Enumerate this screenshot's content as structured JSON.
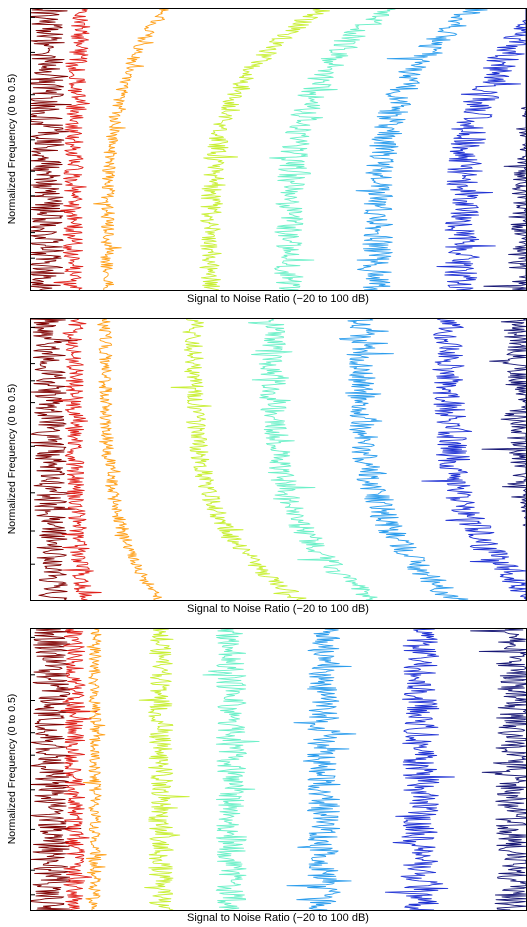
{
  "figure": {
    "panel_count": 3,
    "background": "#ffffff"
  },
  "chart_data": [
    {
      "type": "line",
      "profile": "concave-right",
      "xlabel": "Signal to Noise Ratio (−20 to 100 dB)",
      "ylabel": "Normalized Frequency (0 to 0.5)",
      "xlim": [
        -20,
        100
      ],
      "ylim": [
        0,
        0.5
      ],
      "grid": false,
      "legend": "none",
      "series": [
        {
          "color": "#7f0000",
          "center": -16.5,
          "bend": 0.8,
          "noise": 4.5
        },
        {
          "color": "#e0201a",
          "center": -9.8,
          "bend": 2.6,
          "noise": 2.4
        },
        {
          "color": "#ffa01a",
          "center": -1.5,
          "bend": 14,
          "noise": 1.6
        },
        {
          "color": "#c8ef34",
          "center": 23.5,
          "bend": 27,
          "noise": 2.6
        },
        {
          "color": "#6cf0c8",
          "center": 42.5,
          "bend": 24,
          "noise": 3.5
        },
        {
          "color": "#2c9ded",
          "center": 64.0,
          "bend": 24,
          "noise": 3.6
        },
        {
          "color": "#2133d4",
          "center": 84.5,
          "bend": 22,
          "noise": 4.2
        },
        {
          "color": "#171775",
          "center": 100.5,
          "bend": 18,
          "noise": 4.8
        }
      ]
    },
    {
      "type": "line",
      "profile": "concave-left",
      "xlabel": "Signal to Noise Ratio (−20 to 100 dB)",
      "ylabel": "Normalized Frequency (0 to 0.5)",
      "xlim": [
        -20,
        100
      ],
      "ylim": [
        0,
        0.5
      ],
      "grid": false,
      "legend": "none",
      "series": [
        {
          "color": "#7f0000",
          "center": -15.5,
          "bend": 0.8,
          "noise": 4.0
        },
        {
          "color": "#e0201a",
          "center": -9.5,
          "bend": 2.4,
          "noise": 2.2
        },
        {
          "color": "#ffa01a",
          "center": -2.0,
          "bend": 13,
          "noise": 1.6
        },
        {
          "color": "#c8ef34",
          "center": 19.5,
          "bend": 26,
          "noise": 2.4
        },
        {
          "color": "#6cf0c8",
          "center": 38.5,
          "bend": 24,
          "noise": 3.2
        },
        {
          "color": "#2c9ded",
          "center": 60.0,
          "bend": 23,
          "noise": 3.4
        },
        {
          "color": "#2133d4",
          "center": 81.0,
          "bend": 22,
          "noise": 4.0
        },
        {
          "color": "#171775",
          "center": 99.0,
          "bend": 20,
          "noise": 4.6
        }
      ]
    },
    {
      "type": "line",
      "profile": "flat",
      "xlabel": "Signal to Noise Ratio (−20 to 100 dB)",
      "ylabel": "Normalized Frequency (0 to 0.5)",
      "xlim": [
        -20,
        100
      ],
      "ylim": [
        0,
        0.5
      ],
      "grid": false,
      "legend": "none",
      "series": [
        {
          "color": "#7f0000",
          "center": -15.0,
          "bend": 0,
          "noise": 4.5
        },
        {
          "color": "#e0201a",
          "center": -9.5,
          "bend": 0,
          "noise": 2.6
        },
        {
          "color": "#ffa01a",
          "center": -4.5,
          "bend": 0,
          "noise": 1.5
        },
        {
          "color": "#c8ef34",
          "center": 11.5,
          "bend": 0,
          "noise": 3.0
        },
        {
          "color": "#6cf0c8",
          "center": 28.5,
          "bend": 0,
          "noise": 3.8
        },
        {
          "color": "#2c9ded",
          "center": 51.0,
          "bend": 0,
          "noise": 4.0
        },
        {
          "color": "#2133d4",
          "center": 74.5,
          "bend": 0,
          "noise": 4.4
        },
        {
          "color": "#171775",
          "center": 97.5,
          "bend": 0,
          "noise": 5.0
        }
      ]
    }
  ]
}
